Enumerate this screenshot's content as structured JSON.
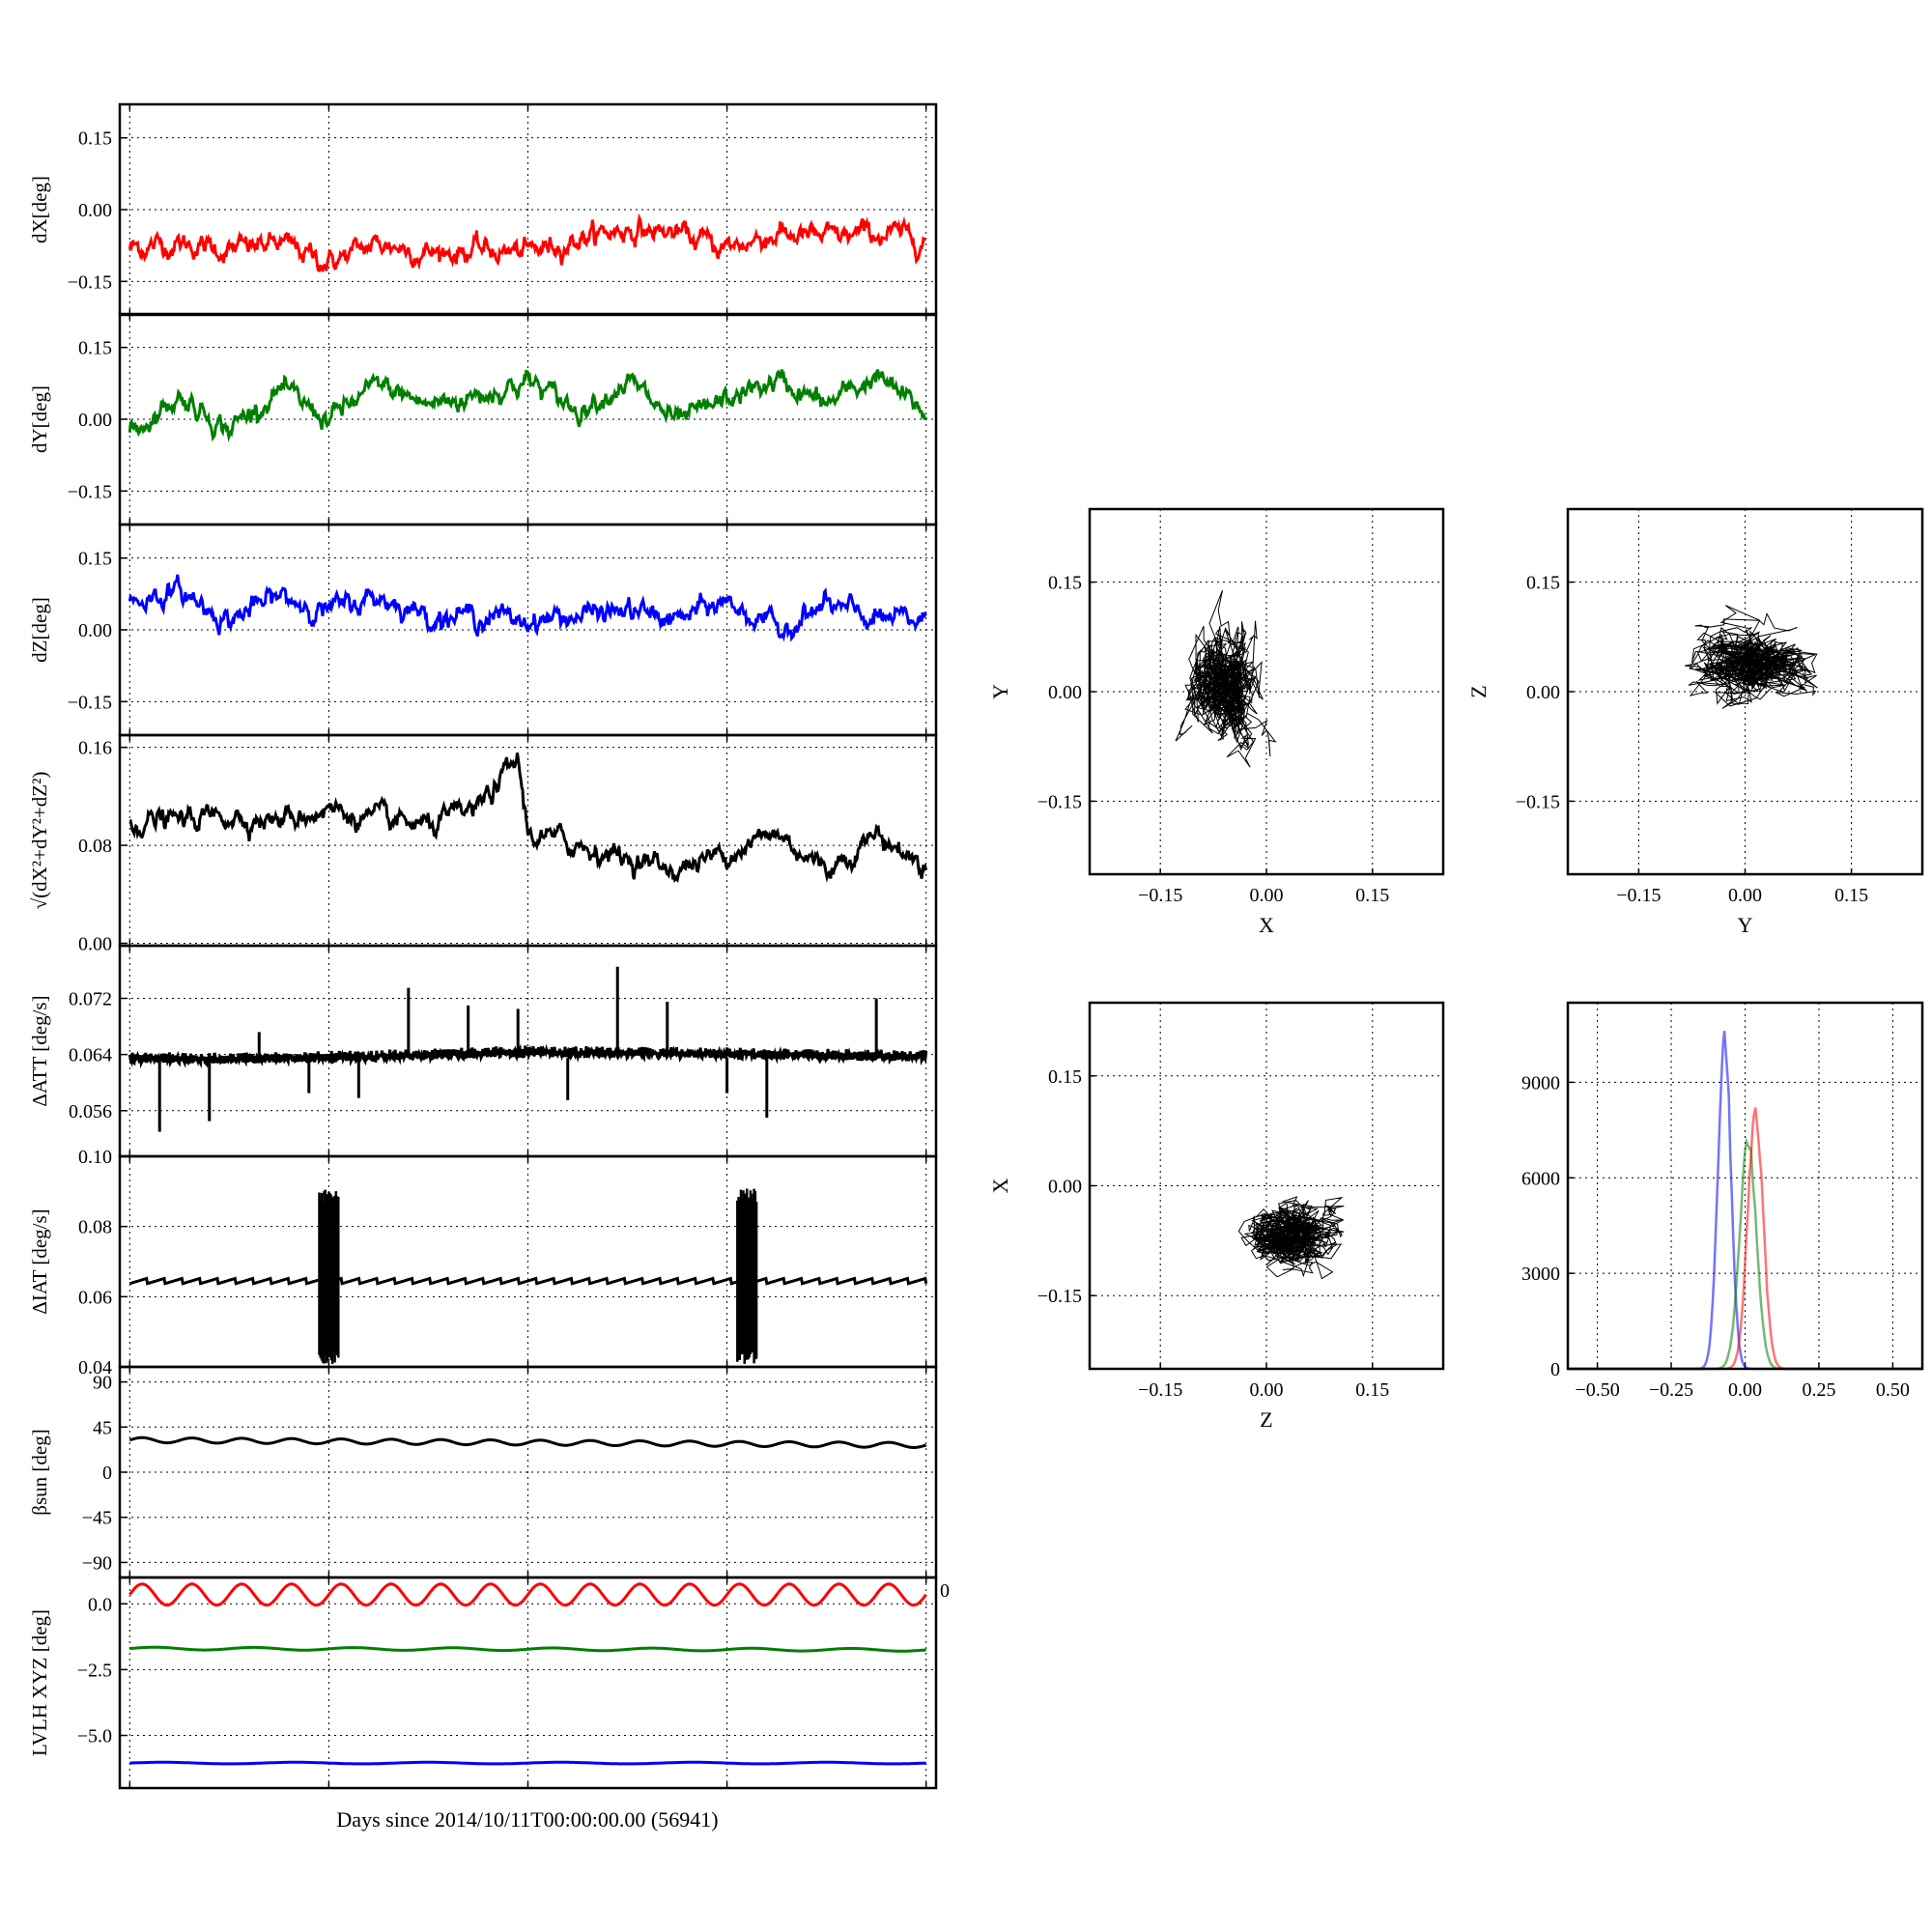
{
  "figure": {
    "xlabel": "Days since 2014/10/11T00:00:00.00 (56941)"
  },
  "colors": {
    "red": "#ff0000",
    "green": "#007f00",
    "blue": "#0000ff",
    "black": "#000000"
  },
  "chart_data": [
    {
      "type": "line",
      "id": "dx",
      "ylabel": "dX[deg]",
      "ylim": [
        -0.22,
        0.22
      ],
      "yticks": [
        -0.15,
        0.0,
        0.15
      ],
      "ytick_labels": [
        "−0.15",
        "0.00",
        "0.15"
      ],
      "xlim": [
        -0.05,
        4.05
      ],
      "grid": true,
      "series": [
        {
          "color": "red",
          "x": [
            0,
            0.25,
            0.5,
            0.75,
            1.0,
            1.25,
            1.5,
            1.75,
            2.0,
            2.25,
            2.5,
            2.75,
            3.0,
            3.25,
            3.5,
            3.75,
            4.0
          ],
          "y": [
            -0.08,
            -0.07,
            -0.085,
            -0.07,
            -0.11,
            -0.07,
            -0.09,
            -0.085,
            -0.09,
            -0.06,
            -0.04,
            -0.05,
            -0.08,
            -0.05,
            -0.06,
            -0.05,
            -0.06
          ]
        }
      ]
    },
    {
      "type": "line",
      "id": "dy",
      "ylabel": "dY[deg]",
      "ylim": [
        -0.22,
        0.22
      ],
      "yticks": [
        -0.15,
        0.0,
        0.15
      ],
      "ytick_labels": [
        "−0.15",
        "0.00",
        "0.15"
      ],
      "xlim": [
        -0.05,
        4.05
      ],
      "grid": true,
      "series": [
        {
          "color": "green",
          "x": [
            0,
            0.25,
            0.5,
            0.75,
            1.0,
            1.25,
            1.5,
            1.75,
            2.0,
            2.25,
            2.5,
            2.75,
            3.0,
            3.25,
            3.5,
            3.75,
            4.0
          ],
          "y": [
            -0.03,
            0.05,
            -0.02,
            0.06,
            0.0,
            0.07,
            0.03,
            0.05,
            0.08,
            0.02,
            0.08,
            -0.01,
            0.04,
            0.08,
            0.03,
            0.09,
            0.01
          ]
        }
      ]
    },
    {
      "type": "line",
      "id": "dz",
      "ylabel": "dZ[deg]",
      "ylim": [
        -0.22,
        0.22
      ],
      "yticks": [
        -0.15,
        0.0,
        0.15
      ],
      "ytick_labels": [
        "−0.15",
        "0.00",
        "0.15"
      ],
      "xlim": [
        -0.05,
        4.05
      ],
      "grid": true,
      "series": [
        {
          "color": "blue",
          "x": [
            0,
            0.25,
            0.5,
            0.75,
            1.0,
            1.25,
            1.5,
            1.75,
            2.0,
            2.25,
            2.5,
            2.75,
            3.0,
            3.25,
            3.5,
            3.75,
            4.0
          ],
          "y": [
            0.06,
            0.08,
            0.02,
            0.07,
            0.04,
            0.07,
            0.03,
            0.03,
            0.02,
            0.03,
            0.04,
            0.02,
            0.06,
            0.0,
            0.05,
            0.02,
            0.02
          ]
        }
      ]
    },
    {
      "type": "line",
      "id": "dr",
      "ylabel": "√(dX²+dY²+dZ²)",
      "ylim": [
        -0.002,
        0.17
      ],
      "yticks": [
        0.0,
        0.08,
        0.16
      ],
      "ytick_labels": [
        "0.00",
        "0.08",
        "0.16"
      ],
      "xlim": [
        -0.05,
        4.05
      ],
      "grid": true,
      "series": [
        {
          "color": "black",
          "x": [
            0,
            0.25,
            0.5,
            0.75,
            1.0,
            1.25,
            1.5,
            1.75,
            1.95,
            2.0,
            2.25,
            2.5,
            2.75,
            3.0,
            3.25,
            3.5,
            3.75,
            4.0
          ],
          "y": [
            0.1,
            0.1,
            0.105,
            0.1,
            0.11,
            0.1,
            0.095,
            0.11,
            0.15,
            0.09,
            0.08,
            0.07,
            0.06,
            0.075,
            0.09,
            0.06,
            0.09,
            0.06
          ]
        }
      ]
    },
    {
      "type": "line",
      "id": "datt",
      "ylabel": "ΔATT [deg/s]",
      "ylim": [
        0.0495,
        0.0795
      ],
      "yticks": [
        0.056,
        0.064,
        0.072
      ],
      "ytick_labels": [
        "0.056",
        "0.064",
        "0.072"
      ],
      "xlim": [
        -0.05,
        4.05
      ],
      "grid": true,
      "series": [
        {
          "color": "black",
          "x": [
            0,
            0.5,
            1.0,
            1.5,
            2.0,
            2.5,
            3.0,
            3.5,
            4.0
          ],
          "y": [
            0.0635,
            0.0635,
            0.0637,
            0.064,
            0.0645,
            0.0643,
            0.0642,
            0.064,
            0.0638
          ],
          "spikes_x": [
            0.15,
            0.4,
            0.65,
            0.9,
            1.15,
            1.4,
            1.7,
            1.95,
            2.2,
            2.45,
            2.7,
            3.0,
            3.2,
            3.75
          ],
          "spikes_y": [
            0.053,
            0.0545,
            0.0672,
            0.0585,
            0.0578,
            0.0735,
            0.071,
            0.0705,
            0.0575,
            0.0765,
            0.0715,
            0.0585,
            0.055,
            0.072
          ]
        }
      ]
    },
    {
      "type": "line",
      "id": "diat",
      "ylabel": "ΔIAT [deg/s]",
      "ylim": [
        0.04,
        0.1
      ],
      "yticks": [
        0.04,
        0.06,
        0.08,
        0.1
      ],
      "ytick_labels": [
        "0.04",
        "0.06",
        "0.08",
        "0.10"
      ],
      "xlim": [
        -0.05,
        4.05
      ],
      "grid": true,
      "series": [
        {
          "color": "black",
          "x": [
            0,
            4.0
          ],
          "y": [
            0.0645,
            0.0645
          ],
          "bursts_x": [
            1.0,
            3.1
          ],
          "bursts_range": [
            0.0405,
            0.091
          ]
        }
      ]
    },
    {
      "type": "line",
      "id": "beta",
      "ylabel": "βsun [deg]",
      "ylim": [
        -105,
        105
      ],
      "yticks": [
        -90,
        -45,
        0,
        45,
        90
      ],
      "ytick_labels": [
        "−90",
        "−45",
        "0",
        "45",
        "90"
      ],
      "xlim": [
        -0.05,
        4.05
      ],
      "grid": true,
      "series": [
        {
          "color": "black",
          "x": [
            0,
            4.0
          ],
          "y": [
            32,
            27
          ],
          "wave_amplitude": 2.5,
          "wave_cycles": 16
        }
      ]
    },
    {
      "type": "line",
      "id": "lvlh",
      "ylabel": "LVLH XYZ [deg]",
      "ylim": [
        -7.0,
        1.0
      ],
      "yticks": [
        -5.0,
        -2.5,
        0.0
      ],
      "ytick_labels": [
        "−5.0",
        "−2.5",
        "0.0"
      ],
      "xlim": [
        -0.05,
        4.05
      ],
      "grid": true,
      "overflow_tick_label": "0",
      "series": [
        {
          "color": "red",
          "x": [
            0,
            4.0
          ],
          "y": [
            0.35,
            0.35
          ],
          "wave_amplitude": 0.4,
          "wave_cycles": 16
        },
        {
          "color": "green",
          "x": [
            0,
            4.0
          ],
          "y": [
            -1.7,
            -1.75
          ],
          "wave_amplitude": 0.05,
          "wave_cycles": 8
        },
        {
          "color": "blue",
          "x": [
            0,
            4.0
          ],
          "y": [
            -6.05,
            -6.05
          ],
          "wave_amplitude": 0.03,
          "wave_cycles": 6
        }
      ]
    },
    {
      "type": "scatter",
      "id": "xy",
      "xlabel": "X",
      "ylabel": "Y",
      "xlim": [
        -0.25,
        0.25
      ],
      "ylim": [
        -0.25,
        0.25
      ],
      "xticks": [
        -0.15,
        0.0,
        0.15
      ],
      "yticks": [
        -0.15,
        0.0,
        0.15
      ],
      "tick_labels": [
        "−0.15",
        "0.00",
        "0.15"
      ],
      "grid": true,
      "cloud": {
        "cx": -0.06,
        "cy": 0.01,
        "sx": 0.022,
        "sy": 0.035,
        "n": 900,
        "color": "black"
      }
    },
    {
      "type": "scatter",
      "id": "yz",
      "xlabel": "Y",
      "ylabel": "Z",
      "xlim": [
        -0.25,
        0.25
      ],
      "ylim": [
        -0.25,
        0.25
      ],
      "xticks": [
        -0.15,
        0.0,
        0.15
      ],
      "yticks": [
        -0.15,
        0.0,
        0.15
      ],
      "tick_labels": [
        "−0.15",
        "0.00",
        "0.15"
      ],
      "grid": true,
      "cloud": {
        "cx": 0.01,
        "cy": 0.035,
        "sx": 0.035,
        "sy": 0.022,
        "n": 900,
        "color": "black"
      }
    },
    {
      "type": "scatter",
      "id": "zx",
      "xlabel": "Z",
      "ylabel": "X",
      "xlim": [
        -0.25,
        0.25
      ],
      "ylim": [
        -0.25,
        0.25
      ],
      "xticks": [
        -0.15,
        0.0,
        0.15
      ],
      "yticks": [
        -0.15,
        0.0,
        0.15
      ],
      "tick_labels": [
        "−0.15",
        "0.00",
        "0.15"
      ],
      "grid": true,
      "cloud": {
        "cx": 0.035,
        "cy": -0.07,
        "sx": 0.03,
        "sy": 0.02,
        "n": 900,
        "color": "black"
      }
    },
    {
      "type": "histogram",
      "id": "hist",
      "xlim": [
        -0.6,
        0.6
      ],
      "ylim": [
        0,
        11500
      ],
      "xticks": [
        -0.5,
        -0.25,
        0.0,
        0.25,
        0.5
      ],
      "xtick_labels": [
        "−0.50",
        "−0.25",
        "0.00",
        "0.25",
        "0.50"
      ],
      "yticks": [
        0,
        3000,
        6000,
        9000
      ],
      "ytick_labels": [
        "0",
        "3000",
        "6000",
        "9000"
      ],
      "grid": true,
      "series": [
        {
          "color": "blue",
          "center": -0.07,
          "sigma": 0.022,
          "peak": 10400
        },
        {
          "color": "green",
          "center": 0.01,
          "sigma": 0.028,
          "peak": 7200
        },
        {
          "color": "red",
          "center": 0.035,
          "sigma": 0.026,
          "peak": 8100
        }
      ]
    }
  ]
}
